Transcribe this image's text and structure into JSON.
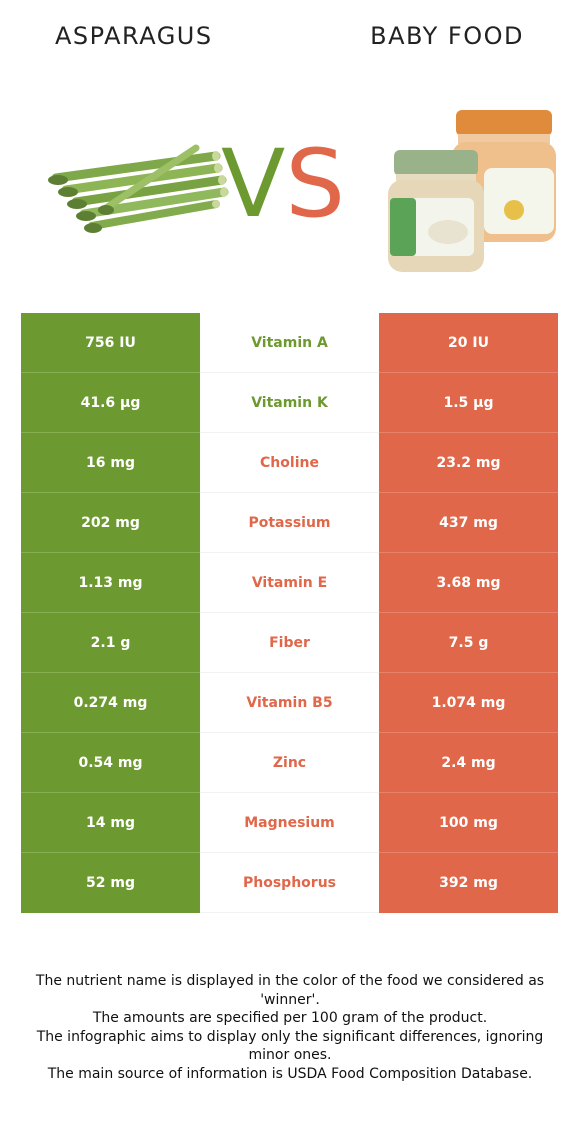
{
  "header": {
    "left_food": "ASPARAGUS",
    "right_food": "BABY FOOD",
    "vs_v": "V",
    "vs_s": "S"
  },
  "colors": {
    "left_food": "#6d9a30",
    "right_food": "#e0674a"
  },
  "images": {
    "left": "asparagus-bundle",
    "right": "baby-food-jars"
  },
  "rows": [
    {
      "left": "756 IU",
      "nutrient": "Vitamin A",
      "right": "20 IU",
      "winner": "left"
    },
    {
      "left": "41.6 µg",
      "nutrient": "Vitamin K",
      "right": "1.5 µg",
      "winner": "left"
    },
    {
      "left": "16 mg",
      "nutrient": "Choline",
      "right": "23.2 mg",
      "winner": "right"
    },
    {
      "left": "202 mg",
      "nutrient": "Potassium",
      "right": "437 mg",
      "winner": "right"
    },
    {
      "left": "1.13 mg",
      "nutrient": "Vitamin E",
      "right": "3.68 mg",
      "winner": "right"
    },
    {
      "left": "2.1 g",
      "nutrient": "Fiber",
      "right": "7.5 g",
      "winner": "right"
    },
    {
      "left": "0.274 mg",
      "nutrient": "Vitamin B5",
      "right": "1.074 mg",
      "winner": "right"
    },
    {
      "left": "0.54 mg",
      "nutrient": "Zinc",
      "right": "2.4 mg",
      "winner": "right"
    },
    {
      "left": "14 mg",
      "nutrient": "Magnesium",
      "right": "100 mg",
      "winner": "right"
    },
    {
      "left": "52 mg",
      "nutrient": "Phosphorus",
      "right": "392 mg",
      "winner": "right"
    }
  ],
  "footnote": {
    "line1": "The nutrient name is displayed in the color of the food we considered as 'winner'.",
    "line2": "The amounts are specified per 100 gram of the product.",
    "line3": "The infographic aims to display only the significant differences, ignoring minor ones.",
    "line4": "The main source of information is USDA Food Composition Database."
  }
}
